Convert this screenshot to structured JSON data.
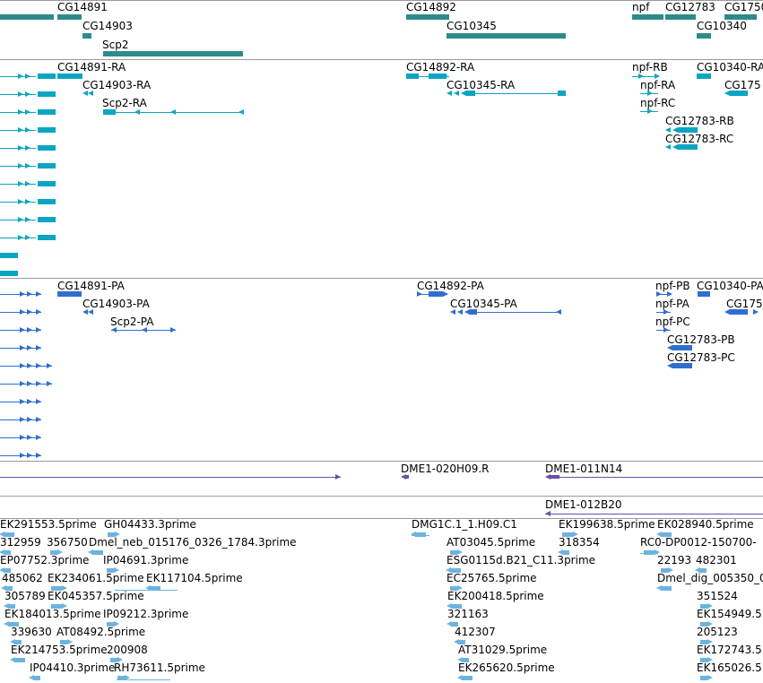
{
  "colors": {
    "gene": "#2e8b8b",
    "transcript": "#0aa5c2",
    "protein": "#2f6fd1",
    "clone": "#6b4fa6",
    "est": "#6cb3e0",
    "separator": "#9a9a9a"
  },
  "tracks": {
    "genes": {
      "labels": [
        "CG14891",
        "CG14903",
        "Scp2",
        "CG14892",
        "CG10345",
        "npf",
        "CG12783",
        "CG1750",
        "CG10340"
      ]
    },
    "transcripts": {
      "labels": [
        "CG14891-RA",
        "CG14903-RA",
        "Scp2-RA",
        "CG14892-RA",
        "CG10345-RA",
        "npf-RB",
        "npf-RA",
        "npf-RC",
        "CG10340-RA",
        "CG175",
        "CG12783-RB",
        "CG12783-RC"
      ]
    },
    "proteins": {
      "labels": [
        "CG14891-PA",
        "CG14903-PA",
        "Scp2-PA",
        "CG14892-PA",
        "CG10345-PA",
        "npf-PB",
        "npf-PA",
        "npf-PC",
        "CG10340-PA",
        "CG175",
        "CG12783-PB",
        "CG12783-PC"
      ]
    },
    "clones": {
      "labels": [
        "DME1-020H09.R",
        "DME1-011N14",
        "DME1-012B20"
      ]
    },
    "ests": {
      "labels": [
        "EK291553.5prime",
        "GH04433.3prime",
        "312959",
        "356750",
        "Dmel_neb_015176_0326_1784.3prime",
        "EP07752.3prime",
        "IP04691.3prime",
        "485062",
        "EK234061.5prime",
        "EK117104.5prime",
        "305789",
        "EK045357.5prime",
        "EK184013.5prime",
        "IP09212.3prime",
        "339630",
        "AT08492.5prime",
        "EK214753.5prime",
        "200908",
        "IP04410.3prime",
        "RH73611.5prime",
        "DMG1C.1_1.H09.C1",
        "AT03045.5prime",
        "ESG0115d.B21_C11.3prime",
        "EC25765.5prime",
        "EK200418.5prime",
        "321163",
        "412307",
        "AT31029.5prime",
        "EK265620.5prime",
        "EK199638.5prime",
        "318354",
        "EK028940.5prime",
        "RC0-DP0012-150700-",
        "22193",
        "482301",
        "Dmel_dig_005350_0",
        "351524",
        "EK154949.5",
        "205123",
        "EK172743.5",
        "EK165026.5"
      ]
    }
  }
}
